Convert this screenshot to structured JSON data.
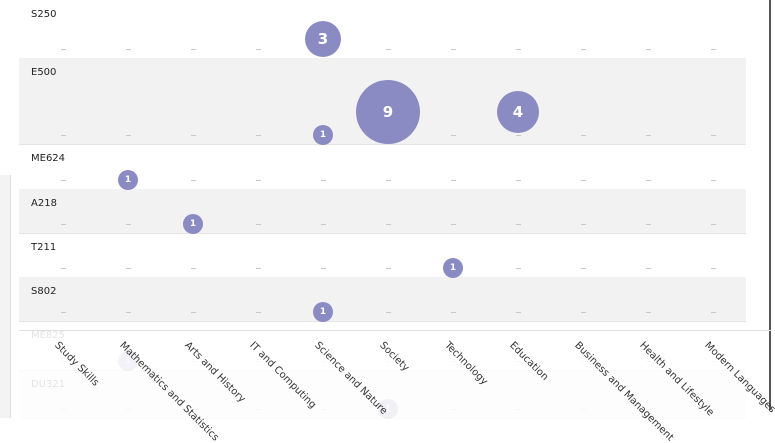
{
  "chart_data": {
    "type": "bubble-matrix",
    "categories": [
      "Study Skills",
      "Mathematics and Statistics",
      "Arts and History",
      "IT and Computing",
      "Science and Nature",
      "Society",
      "Technology",
      "Education",
      "Business and Management",
      "Health and Lifestyle",
      "Modern Languages"
    ],
    "rows": [
      {
        "label": "S250",
        "values": {
          "Science and Nature": 3
        }
      },
      {
        "label": "E500",
        "values": {
          "Science and Nature": 1,
          "Society": 9,
          "Education": 4
        }
      },
      {
        "label": "ME624",
        "values": {
          "Mathematics and Statistics": 1
        }
      },
      {
        "label": "A218",
        "values": {
          "Arts and History": 1
        }
      },
      {
        "label": "T211",
        "values": {
          "Technology": 1
        }
      },
      {
        "label": "S802",
        "values": {
          "Science and Nature": 1
        }
      },
      {
        "label": "ME825",
        "values": {
          "Mathematics and Statistics": 1
        },
        "faded": true
      },
      {
        "label": "DU321",
        "values": {
          "Society": 1
        },
        "faded": true
      }
    ],
    "bubble_color": "#8b8bc4"
  }
}
